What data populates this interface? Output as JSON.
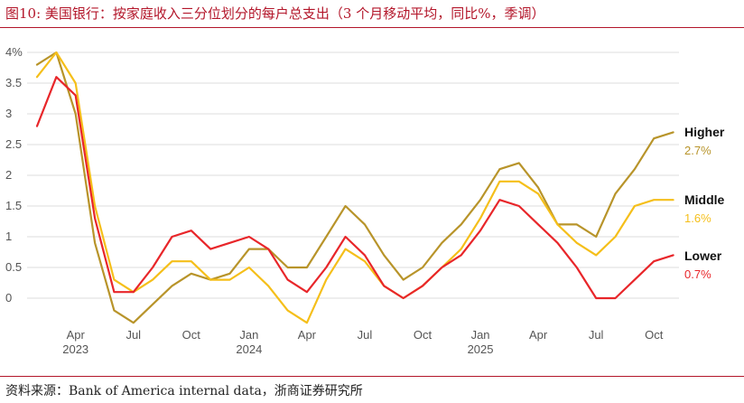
{
  "header": {
    "title": "图10:   美国银行：按家庭收入三分位划分的每户总支出（3 个月移动平均，同比%，季调）"
  },
  "footer": {
    "source": "资料来源：Bank of America internal data，浙商证券研究所"
  },
  "colors": {
    "higher": "#b8942a",
    "middle": "#f5bf1a",
    "lower": "#e8262a",
    "grid": "#dddddd",
    "accent": "#b3162a"
  },
  "chart_data": {
    "type": "line",
    "title": "",
    "xlabel": "",
    "ylabel": "",
    "ylim": [
      -0.4,
      4.1
    ],
    "grid": "horizontal",
    "x": [
      "2023-02",
      "2023-03",
      "2023-04",
      "2023-05",
      "2023-06",
      "2023-07",
      "2023-08",
      "2023-09",
      "2023-10",
      "2023-11",
      "2023-12",
      "2024-01",
      "2024-02",
      "2024-03",
      "2024-04",
      "2024-05",
      "2024-06",
      "2024-07",
      "2024-08",
      "2024-09",
      "2024-10",
      "2024-11",
      "2024-12",
      "2025-01",
      "2025-02",
      "2025-03",
      "2025-04",
      "2025-05",
      "2025-06",
      "2025-07",
      "2025-08",
      "2025-09",
      "2025-10",
      "2025-11"
    ],
    "y_ticks": [
      {
        "value": 4,
        "label": "4%"
      },
      {
        "value": 3.5,
        "label": "3.5"
      },
      {
        "value": 3,
        "label": "3"
      },
      {
        "value": 2.5,
        "label": "2.5"
      },
      {
        "value": 2,
        "label": "2"
      },
      {
        "value": 1.5,
        "label": "1.5"
      },
      {
        "value": 1,
        "label": "1"
      },
      {
        "value": 0.5,
        "label": "0.5"
      },
      {
        "value": 0,
        "label": "0"
      }
    ],
    "x_ticks": [
      {
        "x": "2023-04",
        "label": "Apr",
        "sub": "2023"
      },
      {
        "x": "2023-07",
        "label": "Jul",
        "sub": ""
      },
      {
        "x": "2023-10",
        "label": "Oct",
        "sub": ""
      },
      {
        "x": "2024-01",
        "label": "Jan",
        "sub": "2024"
      },
      {
        "x": "2024-04",
        "label": "Apr",
        "sub": ""
      },
      {
        "x": "2024-07",
        "label": "Jul",
        "sub": ""
      },
      {
        "x": "2024-10",
        "label": "Oct",
        "sub": ""
      },
      {
        "x": "2025-01",
        "label": "Jan",
        "sub": "2025"
      },
      {
        "x": "2025-04",
        "label": "Apr",
        "sub": ""
      },
      {
        "x": "2025-07",
        "label": "Jul",
        "sub": ""
      },
      {
        "x": "2025-10",
        "label": "Oct",
        "sub": ""
      }
    ],
    "series": [
      {
        "name": "Higher",
        "end_label": "2.7%",
        "color": "#b8942a",
        "values": [
          3.8,
          4.0,
          3.0,
          0.9,
          -0.2,
          -0.4,
          -0.1,
          0.2,
          0.4,
          0.3,
          0.4,
          0.8,
          0.8,
          0.5,
          0.5,
          1.0,
          1.5,
          1.2,
          0.7,
          0.3,
          0.5,
          0.9,
          1.2,
          1.6,
          2.1,
          2.2,
          1.8,
          1.2,
          1.2,
          1.0,
          1.7,
          2.1,
          2.6,
          2.7
        ]
      },
      {
        "name": "Middle",
        "end_label": "1.6%",
        "color": "#f5bf1a",
        "values": [
          3.6,
          4.0,
          3.5,
          1.5,
          0.3,
          0.1,
          0.3,
          0.6,
          0.6,
          0.3,
          0.3,
          0.5,
          0.2,
          -0.2,
          -0.4,
          0.3,
          0.8,
          0.6,
          0.2,
          0.0,
          0.2,
          0.5,
          0.8,
          1.3,
          1.9,
          1.9,
          1.7,
          1.2,
          0.9,
          0.7,
          1.0,
          1.5,
          1.6,
          1.6
        ]
      },
      {
        "name": "Lower",
        "end_label": "0.7%",
        "color": "#e8262a",
        "values": [
          2.8,
          3.6,
          3.3,
          1.3,
          0.1,
          0.1,
          0.5,
          1.0,
          1.1,
          0.8,
          0.9,
          1.0,
          0.8,
          0.3,
          0.1,
          0.5,
          1.0,
          0.7,
          0.2,
          0.0,
          0.2,
          0.5,
          0.7,
          1.1,
          1.6,
          1.5,
          1.2,
          0.9,
          0.5,
          0.0,
          0.0,
          0.3,
          0.6,
          0.7
        ]
      }
    ]
  }
}
